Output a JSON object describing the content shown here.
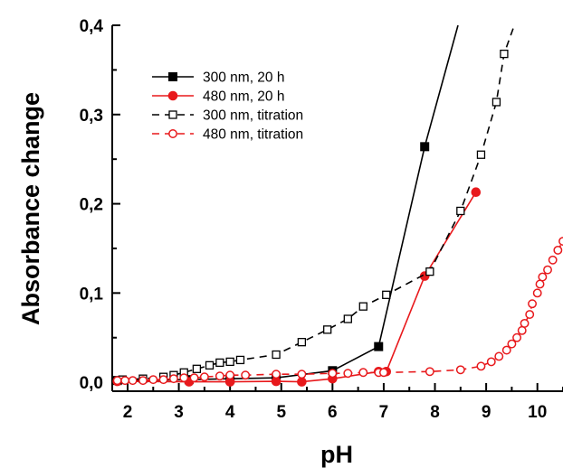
{
  "chart_data": {
    "type": "line",
    "xlabel": "pH",
    "ylabel": "Absorbance change",
    "xlim": [
      1.7,
      10.5
    ],
    "ylim": [
      -0.01,
      0.4
    ],
    "xticks": [
      "2",
      "3",
      "4",
      "5",
      "6",
      "7",
      "8",
      "9",
      "10"
    ],
    "yticks": [
      "0,0",
      "0,1",
      "0,2",
      "0,3",
      "0,4"
    ],
    "grid": false,
    "legend_position": "top-left",
    "series": [
      {
        "name": "300 nm, 20 h",
        "color": "#000000",
        "line": "solid",
        "marker": "filled-square",
        "x": [
          1.8,
          3.2,
          4.0,
          4.9,
          6.0,
          6.9,
          7.8,
          8.45
        ],
        "y": [
          0.002,
          0.003,
          0.004,
          0.005,
          0.013,
          0.04,
          0.264,
          0.4
        ],
        "marked": [
          true,
          true,
          true,
          true,
          true,
          true,
          true,
          false
        ]
      },
      {
        "name": "480 nm, 20 h",
        "color": "#e8191c",
        "line": "solid",
        "marker": "filled-circle",
        "x": [
          1.8,
          3.2,
          4.0,
          4.9,
          5.4,
          6.0,
          6.9,
          7.05,
          7.8,
          8.8
        ],
        "y": [
          0.001,
          0.0005,
          0.0005,
          0.001,
          0.0005,
          0.004,
          0.012,
          0.012,
          0.119,
          0.213
        ],
        "marked": [
          true,
          true,
          true,
          true,
          true,
          true,
          true,
          true,
          true,
          true
        ]
      },
      {
        "name": "300 nm, titration",
        "color": "#000000",
        "line": "dashed",
        "marker": "open-square",
        "x": [
          1.9,
          2.3,
          2.7,
          2.9,
          3.1,
          3.35,
          3.6,
          3.8,
          4.0,
          4.2,
          4.9,
          5.4,
          5.9,
          6.3,
          6.6,
          7.05,
          7.9,
          8.5,
          8.9,
          9.2,
          9.35,
          9.55
        ],
        "y": [
          0.003,
          0.004,
          0.006,
          0.008,
          0.011,
          0.015,
          0.019,
          0.022,
          0.023,
          0.025,
          0.031,
          0.045,
          0.059,
          0.071,
          0.085,
          0.098,
          0.124,
          0.192,
          0.255,
          0.314,
          0.368,
          0.4
        ],
        "marked": [
          true,
          true,
          true,
          true,
          true,
          true,
          true,
          true,
          true,
          true,
          true,
          true,
          true,
          true,
          true,
          true,
          true,
          true,
          true,
          true,
          true,
          false
        ]
      },
      {
        "name": "480 nm, titration",
        "color": "#e8191c",
        "line": "dashed",
        "marker": "open-circle",
        "x": [
          1.8,
          1.95,
          2.1,
          2.3,
          2.5,
          2.7,
          2.9,
          3.1,
          3.3,
          3.5,
          3.8,
          4.0,
          4.3,
          4.9,
          5.4,
          6.0,
          6.3,
          6.6,
          6.9,
          7.0,
          7.9,
          8.5,
          8.9,
          9.1,
          9.25,
          9.4,
          9.5,
          9.6,
          9.7,
          9.75,
          9.85,
          9.9,
          10.0,
          10.05,
          10.1,
          10.2,
          10.3,
          10.4,
          10.5
        ],
        "y": [
          0.002,
          0.002,
          0.002,
          0.002,
          0.003,
          0.003,
          0.004,
          0.005,
          0.005,
          0.006,
          0.007,
          0.008,
          0.008,
          0.009,
          0.009,
          0.01,
          0.01,
          0.011,
          0.011,
          0.011,
          0.012,
          0.014,
          0.018,
          0.023,
          0.029,
          0.036,
          0.043,
          0.05,
          0.058,
          0.066,
          0.076,
          0.088,
          0.1,
          0.11,
          0.118,
          0.126,
          0.137,
          0.148,
          0.158
        ],
        "marked": [
          true,
          true,
          true,
          true,
          true,
          true,
          true,
          true,
          true,
          true,
          true,
          true,
          true,
          true,
          true,
          true,
          true,
          true,
          true,
          true,
          true,
          true,
          true,
          true,
          true,
          true,
          true,
          true,
          true,
          true,
          true,
          true,
          true,
          true,
          true,
          true,
          true,
          true,
          true
        ]
      }
    ]
  }
}
